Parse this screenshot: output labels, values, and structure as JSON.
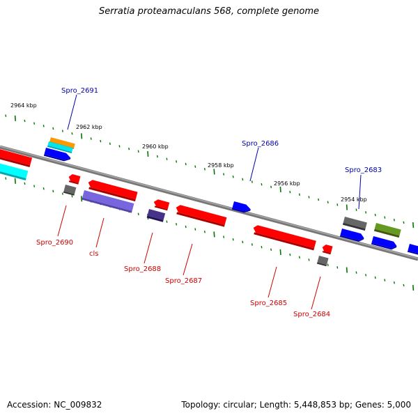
{
  "title": "Serratia proteamaculans 568, complete genome",
  "accession": "Accession: NC_009832",
  "topology": "Topology: circular; Length: 5,448,853 bp; Genes: 5,000",
  "ticks": [
    "2964 kbp",
    "2962 kbp",
    "2960 kbp",
    "2958 kbp",
    "2956 kbp",
    "2954 kbp"
  ],
  "gene_labels": {
    "spro_2691": "Spro_2691",
    "spro_2686": "Spro_2686",
    "spro_2683": "Spro_2683",
    "spro_2690": "Spro_2690",
    "cls": "cls",
    "spro_2688": "Spro_2688",
    "spro_2687": "Spro_2687",
    "spro_2685": "Spro_2685",
    "spro_2684": "Spro_2684"
  },
  "colors": {
    "forward_label": "#0000aa",
    "reverse_label": "#cc0000",
    "backbone": "#888888",
    "tick": "#007700",
    "red": "#ff0000",
    "blue": "#0000ff",
    "cyan": "#00e5ee",
    "orange": "#ff9900",
    "gray": "#666666",
    "lavender": "#7766dd",
    "darkslate": "#443388",
    "olive": "#669922"
  }
}
